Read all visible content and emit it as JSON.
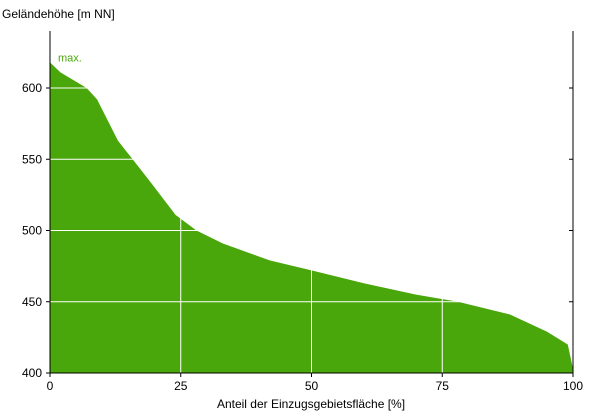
{
  "chart_data": {
    "type": "area",
    "ylabel": "Geländehöhe [m NN]",
    "xlabel": "Anteil der Einzugsgebietsfläche [%]",
    "annotation": "max.",
    "x": [
      0,
      2,
      7,
      9,
      13,
      19,
      24,
      28,
      33,
      42,
      50,
      60,
      70,
      78,
      88,
      95,
      99,
      100
    ],
    "series": [
      {
        "color": "#49a60b",
        "values": [
          618,
          611,
          600,
          592,
          563,
          535,
          511,
          500,
          491,
          479,
          472,
          463,
          455,
          450,
          441,
          429,
          420,
          403
        ]
      }
    ],
    "xlim": [
      0,
      100
    ],
    "xticks": [
      0,
      25,
      50,
      75,
      100
    ],
    "ylim": [
      400,
      640
    ],
    "yticks": [
      400,
      450,
      500,
      550,
      600
    ],
    "grid": true
  }
}
